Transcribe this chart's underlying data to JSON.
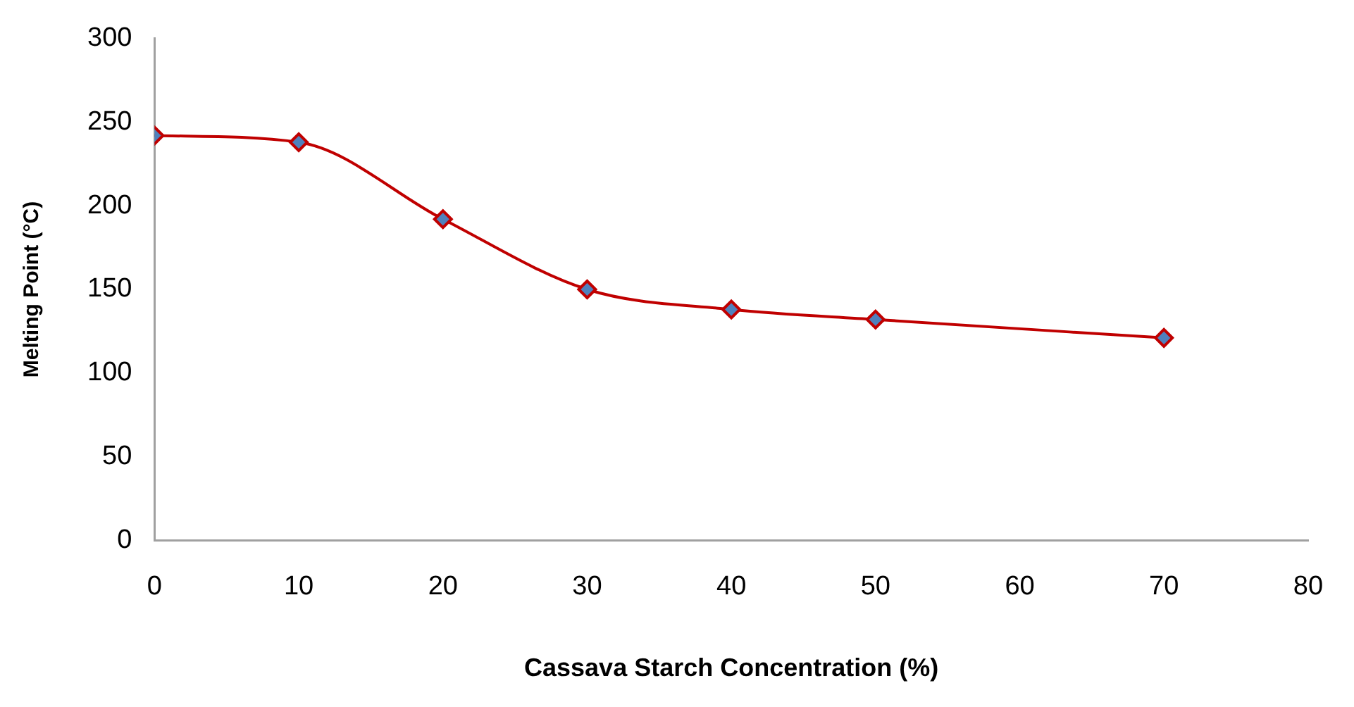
{
  "chart_data": {
    "type": "line",
    "xlabel": "Cassava Starch Concentration (%)",
    "ylabel": "Melting Point (°C)",
    "x": [
      0,
      10,
      20,
      30,
      40,
      50,
      70
    ],
    "series": [
      {
        "color": "#c00000",
        "values": [
          242,
          238,
          192,
          150,
          138,
          132,
          121
        ]
      }
    ],
    "xlim": [
      0,
      80
    ],
    "xticks": [
      0,
      10,
      20,
      30,
      40,
      50,
      60,
      70,
      80
    ],
    "ylim": [
      0,
      300
    ],
    "yticks": [
      0,
      50,
      100,
      150,
      200,
      250,
      300
    ],
    "grid": false,
    "legend": false,
    "marker": "diamond",
    "line_style": "solid"
  }
}
